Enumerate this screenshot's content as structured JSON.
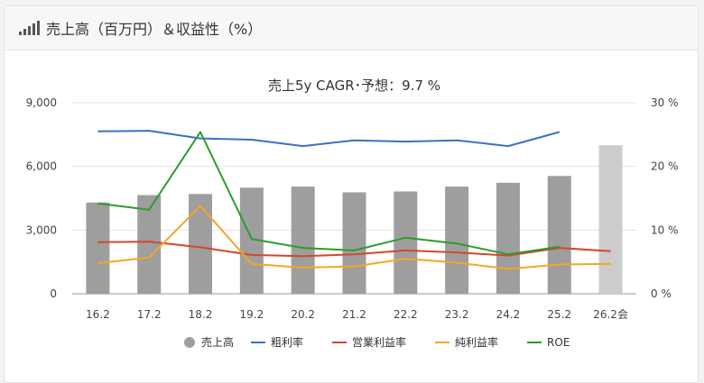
{
  "header": {
    "title": "売上高（百万円）＆収益性（%）",
    "icon": "bar-chart-icon"
  },
  "chart_data": {
    "type": "bar",
    "title": "売上5y CAGR･予想：9.7 %",
    "categories": [
      "16.2",
      "17.2",
      "18.2",
      "19.2",
      "20.2",
      "21.2",
      "22.2",
      "23.2",
      "24.2",
      "25.2",
      "26.2会"
    ],
    "left_axis": {
      "min": 0,
      "max": 9000,
      "ticks": [
        "0",
        "3,000",
        "6,000",
        "9,000"
      ]
    },
    "right_axis": {
      "min": 0,
      "max": 30,
      "ticks": [
        "0 %",
        "10 %",
        "20 %",
        "30 %"
      ]
    },
    "grid": true,
    "legend_position": "bottom",
    "bars": {
      "name": "売上高",
      "values": [
        4300,
        4650,
        4700,
        5000,
        5050,
        4780,
        4820,
        5050,
        5230,
        5550,
        7000
      ],
      "colors": [
        "#9e9e9e",
        "#9e9e9e",
        "#9e9e9e",
        "#9e9e9e",
        "#9e9e9e",
        "#9e9e9e",
        "#9e9e9e",
        "#9e9e9e",
        "#9e9e9e",
        "#9e9e9e",
        "#cccccc"
      ]
    },
    "series": [
      {
        "name": "粗利率",
        "color": "#3d6fc5",
        "values": [
          25.5,
          25.6,
          24.4,
          24.2,
          23.2,
          24.1,
          23.9,
          24.1,
          23.2,
          25.4,
          null
        ]
      },
      {
        "name": "営業利益率",
        "color": "#d3472c",
        "values": [
          8.1,
          8.2,
          7.3,
          6.1,
          5.9,
          6.2,
          6.8,
          6.5,
          6.0,
          7.2,
          6.7
        ]
      },
      {
        "name": "純利益率",
        "color": "#f5a623",
        "values": [
          4.8,
          5.7,
          13.8,
          4.7,
          4.1,
          4.3,
          5.5,
          4.9,
          3.9,
          4.6,
          4.7
        ]
      },
      {
        "name": "ROE",
        "color": "#2a9d2a",
        "values": [
          14.2,
          13.2,
          25.4,
          8.6,
          7.2,
          6.8,
          8.8,
          7.9,
          6.2,
          7.4,
          null
        ]
      }
    ]
  }
}
